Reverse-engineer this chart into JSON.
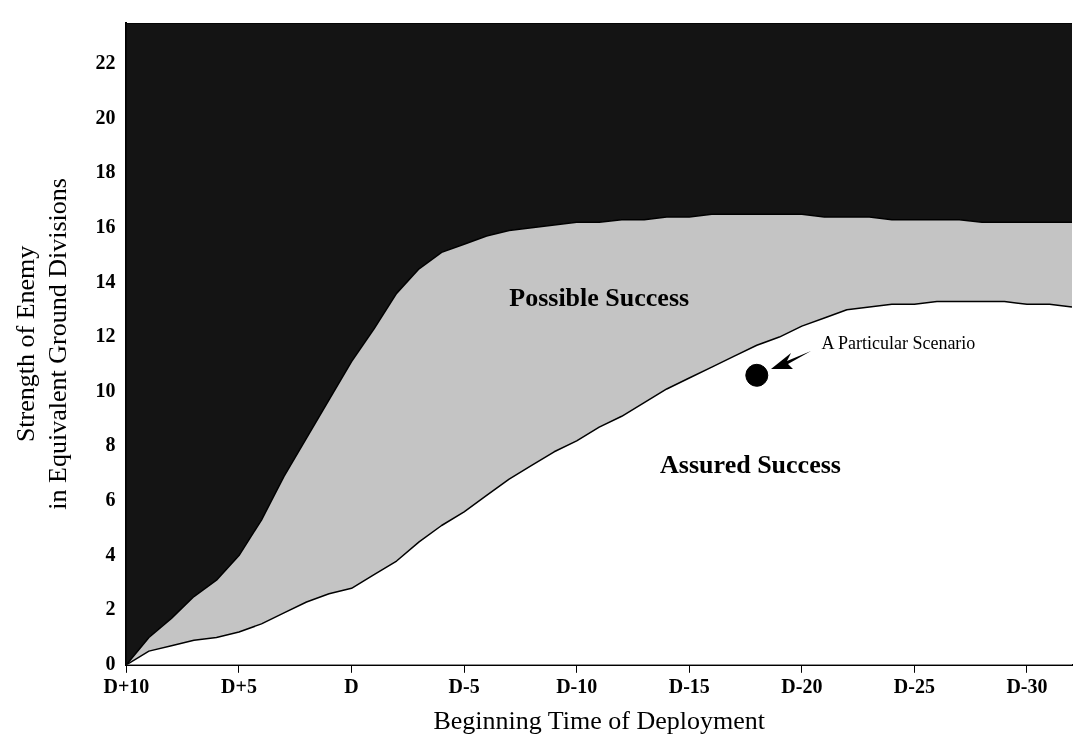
{
  "chart_data": {
    "type": "area",
    "stacked": true,
    "xlabel": "Beginning Time of Deployment",
    "ylabel": "Strength of Enemy\nin Equivalent Ground Divisions",
    "categories": [
      "D+10",
      null,
      null,
      null,
      null,
      "D+5",
      null,
      null,
      null,
      null,
      "D",
      null,
      null,
      null,
      null,
      "D-5",
      null,
      null,
      null,
      null,
      "D-10",
      null,
      null,
      null,
      null,
      "D-15",
      null,
      null,
      null,
      null,
      "D-20",
      null,
      null,
      null,
      null,
      "D-25",
      null,
      null,
      null,
      null,
      "D-30",
      null,
      null
    ],
    "ylim": [
      0,
      23.5
    ],
    "yticks": [
      0,
      2,
      4,
      6,
      8,
      10,
      12,
      14,
      16,
      18,
      20,
      22
    ],
    "grid": false,
    "legend": false,
    "series": [
      {
        "color": "#ffffff",
        "values": [
          0,
          0.5,
          0.7,
          0.9,
          1,
          1.2,
          1.5,
          1.9,
          2.3,
          2.6,
          2.8,
          3.3,
          3.8,
          4.5,
          5.1,
          5.6,
          6.2,
          6.8,
          7.3,
          7.8,
          8.2,
          8.7,
          9.1,
          9.6,
          10.1,
          10.5,
          10.9,
          11.3,
          11.7,
          12,
          12.4,
          12.7,
          13,
          13.1,
          13.2,
          13.2,
          13.3,
          13.3,
          13.3,
          13.3,
          13.2,
          13.2,
          13.1
        ]
      },
      {
        "color": "#c4c4c4",
        "values": [
          0,
          0.5,
          1,
          1.6,
          2.1,
          2.8,
          3.8,
          5,
          6,
          7.1,
          8.3,
          9,
          9.8,
          10,
          10,
          9.8,
          9.5,
          9.1,
          8.7,
          8.3,
          8,
          7.5,
          7.2,
          6.7,
          6.3,
          5.9,
          5.6,
          5.2,
          4.8,
          4.5,
          4.1,
          3.7,
          3.4,
          3.3,
          3.1,
          3.1,
          3,
          3,
          2.9,
          2.9,
          3,
          3,
          3.1
        ]
      },
      {
        "color": "#141414",
        "values": [
          23.5,
          22.5,
          21.8,
          21,
          20.4,
          19.5,
          18.2,
          16.6,
          15.2,
          13.8,
          12.4,
          11.2,
          9.9,
          9,
          8.4,
          8.1,
          7.8,
          7.6,
          7.5,
          7.4,
          7.3,
          7.3,
          7.2,
          7.2,
          7.1,
          7.1,
          7,
          7,
          7,
          7,
          7,
          7.1,
          7.1,
          7.1,
          7.2,
          7.2,
          7.2,
          7.2,
          7.3,
          7.3,
          7.3,
          7.3,
          7.3
        ]
      },
      {
        "type": "scatter",
        "color": "#000000",
        "marker": "circle",
        "values": [
          null,
          null,
          null,
          null,
          null,
          null,
          null,
          null,
          null,
          null,
          null,
          null,
          null,
          null,
          null,
          null,
          null,
          null,
          null,
          null,
          null,
          null,
          null,
          null,
          null,
          null,
          null,
          null,
          10.6,
          null,
          null,
          null,
          null,
          null,
          null,
          null,
          null,
          null,
          null,
          null,
          null,
          null,
          null
        ]
      }
    ],
    "annotations": [
      "Possible Success",
      "Assured Success",
      "A Particular Scenario"
    ]
  }
}
